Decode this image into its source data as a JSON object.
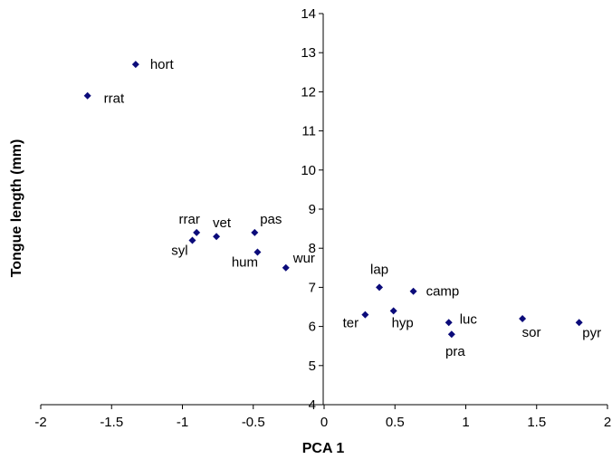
{
  "chart_data": {
    "type": "scatter",
    "title": "",
    "xlabel": "PCA 1",
    "ylabel": "Tongue length (mm)",
    "xlim": [
      -2,
      2
    ],
    "ylim": [
      4,
      14
    ],
    "x_ticks": [
      -2,
      -1.5,
      -1,
      -0.5,
      0,
      0.5,
      1,
      1.5,
      2
    ],
    "x_tick_labels": [
      "-2",
      "-1.5",
      "-1",
      "-0.5",
      "0",
      "0.5",
      "1",
      "1.5",
      "2"
    ],
    "y_ticks": [
      4,
      5,
      6,
      7,
      8,
      9,
      10,
      11,
      12,
      13,
      14
    ],
    "y_tick_labels": [
      "4",
      "5",
      "6",
      "7",
      "8",
      "9",
      "10",
      "11",
      "12",
      "13",
      "14"
    ],
    "grid": false,
    "legend": "none",
    "marker": "diamond",
    "marker_color": "#0b0b7a",
    "points": [
      {
        "label": "hort",
        "x": -1.33,
        "y": 12.7
      },
      {
        "label": "rrat",
        "x": -1.67,
        "y": 11.9
      },
      {
        "label": "rrar",
        "x": -0.9,
        "y": 8.4
      },
      {
        "label": "syl",
        "x": -0.93,
        "y": 8.2
      },
      {
        "label": "vet",
        "x": -0.76,
        "y": 8.3
      },
      {
        "label": "pas",
        "x": -0.49,
        "y": 8.4
      },
      {
        "label": "hum",
        "x": -0.47,
        "y": 7.9
      },
      {
        "label": "wur",
        "x": -0.27,
        "y": 7.5
      },
      {
        "label": "lap",
        "x": 0.39,
        "y": 7.0
      },
      {
        "label": "camp",
        "x": 0.63,
        "y": 6.9
      },
      {
        "label": "ter",
        "x": 0.29,
        "y": 6.3
      },
      {
        "label": "hyp",
        "x": 0.49,
        "y": 6.4
      },
      {
        "label": "luc",
        "x": 0.88,
        "y": 6.1
      },
      {
        "label": "pra",
        "x": 0.9,
        "y": 5.8
      },
      {
        "label": "sor",
        "x": 1.4,
        "y": 6.2
      },
      {
        "label": "pyr",
        "x": 1.8,
        "y": 6.1
      }
    ]
  }
}
